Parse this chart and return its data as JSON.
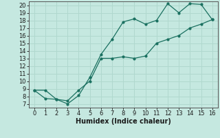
{
  "xlabel": "Humidex (Indice chaleur)",
  "bg_color": "#c5e8e0",
  "grid_color": "#b0d8ce",
  "line_color": "#1a7060",
  "line1_x": [
    0,
    1,
    2,
    3,
    4,
    5,
    6,
    7,
    8,
    9,
    10,
    11,
    12,
    13,
    14,
    15,
    16
  ],
  "line1_y": [
    8.8,
    7.7,
    7.6,
    7.0,
    8.1,
    10.5,
    13.5,
    15.5,
    17.8,
    18.2,
    17.5,
    18.0,
    20.2,
    19.0,
    20.2,
    20.1,
    18.1
  ],
  "line2_x": [
    0,
    1,
    2,
    3,
    4,
    5,
    6,
    7,
    8,
    9,
    10,
    11,
    12,
    13,
    14,
    15,
    16
  ],
  "line2_y": [
    8.8,
    8.8,
    7.6,
    7.4,
    8.8,
    10.0,
    13.0,
    13.0,
    13.2,
    13.0,
    13.3,
    15.0,
    15.5,
    16.0,
    17.0,
    17.5,
    18.1
  ],
  "xlim": [
    -0.5,
    16.5
  ],
  "ylim": [
    6.5,
    20.5
  ],
  "yticks": [
    7,
    8,
    9,
    10,
    11,
    12,
    13,
    14,
    15,
    16,
    17,
    18,
    19,
    20
  ],
  "xticks": [
    0,
    1,
    2,
    3,
    4,
    5,
    6,
    7,
    8,
    9,
    10,
    11,
    12,
    13,
    14,
    15,
    16
  ],
  "tick_fontsize": 6.0,
  "xlabel_fontsize": 7.0
}
